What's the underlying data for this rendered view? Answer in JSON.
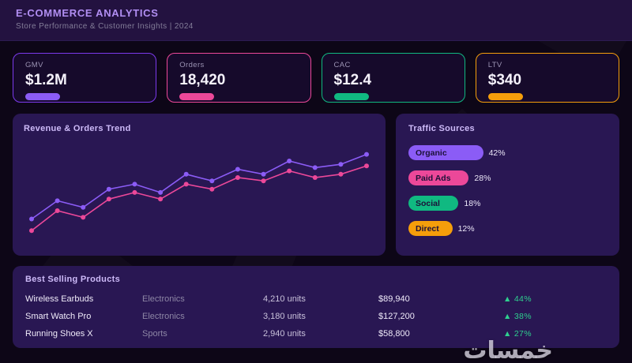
{
  "header": {
    "title": "E-COMMERCE ANALYTICS",
    "subtitle": "Store Performance & Customer Insights  |  2024"
  },
  "kpis": [
    {
      "label": "GMV",
      "value": "$1.2M",
      "color": "#8b5cf6",
      "border": "#7c3aed"
    },
    {
      "label": "Orders",
      "value": "18,420",
      "color": "#ec4899",
      "border": "#ec4899"
    },
    {
      "label": "CAC",
      "value": "$12.4",
      "color": "#10b981",
      "border": "#10b981"
    },
    {
      "label": "LTV",
      "value": "$340",
      "color": "#f59e0b",
      "border": "#f59e0b"
    }
  ],
  "chart_data": {
    "type": "line",
    "title": "Revenue & Orders Trend",
    "x": [
      1,
      2,
      3,
      4,
      5,
      6,
      7,
      8,
      9,
      10,
      11,
      12,
      13,
      14
    ],
    "series": [
      {
        "name": "Revenue",
        "color": "#8b5cf6",
        "values": [
          45,
          56,
          52,
          63,
          66,
          61,
          72,
          68,
          75,
          72,
          80,
          76,
          78,
          84
        ]
      },
      {
        "name": "Orders",
        "color": "#ec4899",
        "values": [
          38,
          50,
          46,
          57,
          61,
          57,
          66,
          63,
          70,
          68,
          74,
          70,
          72,
          77
        ]
      }
    ],
    "ylim": [
      30,
      90
    ],
    "grid": false,
    "legend": "none"
  },
  "traffic": {
    "title": "Traffic Sources",
    "sources": [
      {
        "label": "Organic",
        "value": 42,
        "display": "42%",
        "color": "#8b5cf6"
      },
      {
        "label": "Paid Ads",
        "value": 28,
        "display": "28%",
        "color": "#ec4899"
      },
      {
        "label": "Social",
        "value": 18,
        "display": "18%",
        "color": "#10b981"
      },
      {
        "label": "Direct",
        "value": 12,
        "display": "12%",
        "color": "#f59e0b"
      }
    ]
  },
  "products": {
    "title": "Best Selling Products",
    "growth_color": "#2fd08f",
    "rows": [
      {
        "name": "Wireless Earbuds",
        "category": "Electronics",
        "units": "4,210 units",
        "revenue": "$89,940",
        "growth": "▲ 44%"
      },
      {
        "name": "Smart Watch Pro",
        "category": "Electronics",
        "units": "3,180 units",
        "revenue": "$127,200",
        "growth": "▲ 38%"
      },
      {
        "name": "Running Shoes X",
        "category": "Sports",
        "units": "2,940 units",
        "revenue": "$58,800",
        "growth": "▲ 27%"
      }
    ]
  },
  "watermark": "خمسات"
}
